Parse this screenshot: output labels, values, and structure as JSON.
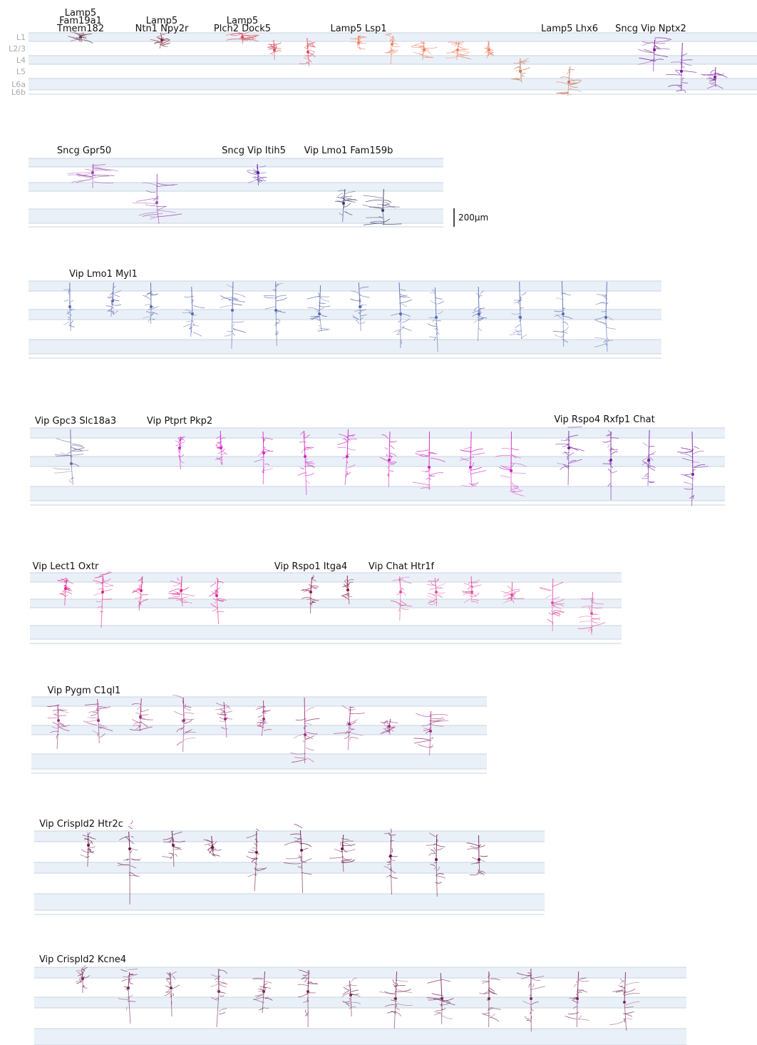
{
  "layer_labels": [
    "L1",
    "L2/3",
    "L4",
    "L5",
    "L6a",
    "L6b"
  ],
  "scale_bar": {
    "label": "200µm"
  },
  "colors": {
    "band_fill": "#eaf0f8",
    "band_line": "#c9d3e0",
    "lamp5_fam19a1": "#6b3a4a",
    "lamp5_ntn1": "#7a2a3a",
    "lamp5_plch2": "#d94a5a",
    "lamp5_lsp1": "#f08060",
    "lamp5_lhx6": "#c87a5a",
    "sncg_vip_nptx2": "#7a1a9a",
    "sncg_gpr50": "#9a4ab0",
    "sncg_vip_itih5": "#4a1aa0",
    "vip_lmo1_fam159b": "#3a3a6a",
    "vip_lmo1_myl1": "#5a6ab0",
    "vip_gpc3": "#6a6aa0",
    "vip_ptprt": "#d020c0",
    "vip_rspo4": "#7a20a0",
    "vip_lect1": "#e0208a",
    "vip_rspo1": "#8a1a4a",
    "vip_chat": "#e050a0",
    "vip_pygm": "#a0307a",
    "vip_crispld2_htr2c": "#6a1a4a",
    "vip_crispld2_kcne4": "#7a2a5a"
  },
  "rows": [
    {
      "groups": [
        {
          "label_lines": [
            "Lamp5",
            "Fam19a1",
            "Tmem182"
          ],
          "color_key": "lamp5_fam19a1"
        },
        {
          "label_lines": [
            "Lamp5",
            "Ntn1 Npy2r"
          ],
          "color_key": "lamp5_ntn1"
        },
        {
          "label_lines": [
            "Lamp5",
            "Plch2 Dock5"
          ],
          "color_key": "lamp5_plch2"
        },
        {
          "label_lines": [
            "Lamp5 Lsp1"
          ],
          "color_key": "lamp5_lsp1"
        },
        {
          "label_lines": [
            "Lamp5 Lhx6"
          ],
          "color_key": "lamp5_lhx6"
        },
        {
          "label_lines": [
            "Sncg Vip Nptx2"
          ],
          "color_key": "sncg_vip_nptx2"
        }
      ]
    },
    {
      "groups": [
        {
          "label_lines": [
            "Sncg Gpr50"
          ],
          "color_key": "sncg_gpr50"
        },
        {
          "label_lines": [
            "Sncg Vip Itih5"
          ],
          "color_key": "sncg_vip_itih5"
        },
        {
          "label_lines": [
            "Vip Lmo1 Fam159b"
          ],
          "color_key": "vip_lmo1_fam159b"
        }
      ]
    },
    {
      "groups": [
        {
          "label_lines": [
            "Vip Lmo1 Myl1"
          ],
          "color_key": "vip_lmo1_myl1"
        }
      ]
    },
    {
      "groups": [
        {
          "label_lines": [
            "Vip Gpc3 Slc18a3"
          ],
          "color_key": "vip_gpc3"
        },
        {
          "label_lines": [
            "Vip Ptprt Pkp2"
          ],
          "color_key": "vip_ptprt"
        },
        {
          "label_lines": [
            "Vip Rspo4 Rxfp1 Chat"
          ],
          "color_key": "vip_rspo4"
        }
      ]
    },
    {
      "groups": [
        {
          "label_lines": [
            "Vip Lect1 Oxtr"
          ],
          "color_key": "vip_lect1"
        },
        {
          "label_lines": [
            "Vip Rspo1 Itga4"
          ],
          "color_key": "vip_rspo1"
        },
        {
          "label_lines": [
            "Vip Chat Htr1f"
          ],
          "color_key": "vip_chat"
        }
      ]
    },
    {
      "groups": [
        {
          "label_lines": [
            "Vip Pygm C1ql1"
          ],
          "color_key": "vip_pygm"
        }
      ]
    },
    {
      "groups": [
        {
          "label_lines": [
            "Vip Crispld2 Htr2c"
          ],
          "color_key": "vip_crispld2_htr2c"
        }
      ]
    },
    {
      "groups": [
        {
          "label_lines": [
            "Vip Crispld2 Kcne4"
          ],
          "color_key": "vip_crispld2_kcne4"
        }
      ]
    }
  ]
}
